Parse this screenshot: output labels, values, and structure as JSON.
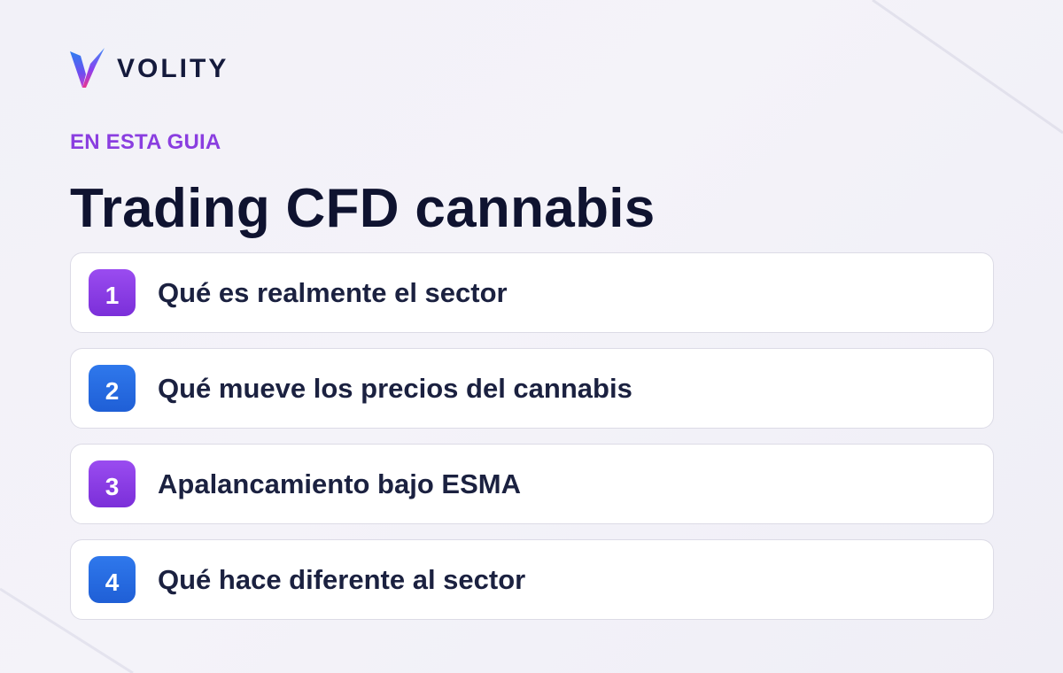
{
  "brand": {
    "name": "VOLITY",
    "logo_icon": "volity-v-logo-icon",
    "logo_colors": [
      "#2f7ff0",
      "#8b3ff0",
      "#e8368f"
    ]
  },
  "eyebrow": "EN ESTA GUIA",
  "title": "Trading CFD cannabis",
  "colors": {
    "eyebrow": "#8a3ee0",
    "title": "#0f1330",
    "badge_purple": "#8b3ff0",
    "badge_blue": "#2a6ee6"
  },
  "items": [
    {
      "number": "1",
      "label": "Qué es realmente el sector",
      "badge_color": "purple"
    },
    {
      "number": "2",
      "label": "Qué mueve los precios del cannabis",
      "badge_color": "blue"
    },
    {
      "number": "3",
      "label": "Apalancamiento bajo ESMA",
      "badge_color": "purple"
    },
    {
      "number": "4",
      "label": "Qué hace diferente al sector",
      "badge_color": "blue"
    }
  ]
}
